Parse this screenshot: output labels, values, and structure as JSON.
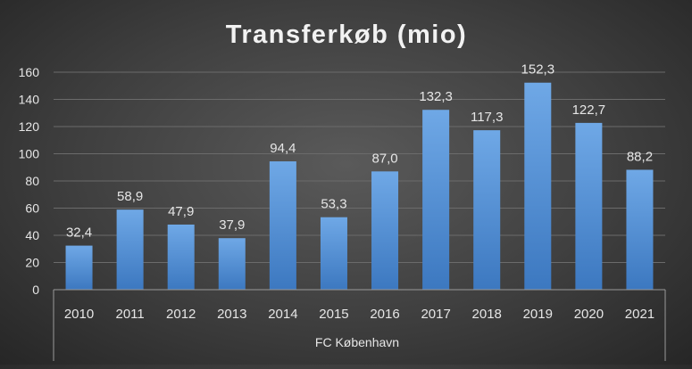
{
  "chart_data": {
    "type": "bar",
    "title": "Transferkøb (mio)",
    "group_label": "FC København",
    "categories": [
      "2010",
      "2011",
      "2012",
      "2013",
      "2014",
      "2015",
      "2016",
      "2017",
      "2018",
      "2019",
      "2020",
      "2021"
    ],
    "values": [
      32.4,
      58.9,
      47.9,
      37.9,
      94.4,
      53.3,
      87.0,
      132.3,
      117.3,
      152.3,
      122.7,
      88.2
    ],
    "value_labels": [
      "32,4",
      "58,9",
      "47,9",
      "37,9",
      "94,4",
      "53,3",
      "87,0",
      "132,3",
      "117,3",
      "152,3",
      "122,7",
      "88,2"
    ],
    "ylim": [
      0,
      160
    ],
    "yticks": [
      "0",
      "20",
      "40",
      "60",
      "80",
      "100",
      "120",
      "140",
      "160"
    ],
    "grid": true,
    "legend": "none",
    "colors": {
      "bar_top": "#6fa8e6",
      "bar_bottom": "#3c78c0",
      "text": "#e6e6e6",
      "title": "#f2f2f2",
      "axis": "#9a9a9a"
    }
  }
}
